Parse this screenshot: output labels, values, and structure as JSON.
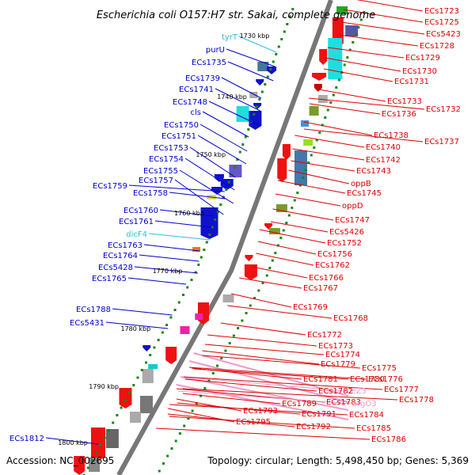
{
  "title": "Escherichia coli O157:H7 str. Sakai, complete genome",
  "footer": {
    "accession": "Accession: NC_002695",
    "summary": "Topology: circular; Length: 5,498,450 bp; Genes: 5,369"
  },
  "colors": {
    "reverse_label": "#0000cc",
    "forward_label": "#dd0000",
    "trna_label": "#33bbdd",
    "pseudo_label": "#ee99cc",
    "backbone": "#777777",
    "tick": "#118811"
  },
  "ruler_labels": [
    "1730 kbp",
    "1740 kbp",
    "1750 kbp",
    "1760 kbp",
    "1770 kbp",
    "1780 kbp",
    "1790 kbp",
    "1800 kbp"
  ],
  "left_genes": [
    {
      "label": "tyrT",
      "kind": "trna"
    },
    {
      "label": "purU",
      "kind": "gene"
    },
    {
      "label": "ECs1735",
      "kind": "gene"
    },
    {
      "label": "ECs1739",
      "kind": "gene"
    },
    {
      "label": "ECs1741",
      "kind": "gene"
    },
    {
      "label": "ECs1748",
      "kind": "gene"
    },
    {
      "label": "cls",
      "kind": "gene"
    },
    {
      "label": "ECs1750",
      "kind": "gene"
    },
    {
      "label": "ECs1751",
      "kind": "gene"
    },
    {
      "label": "ECs1753",
      "kind": "gene"
    },
    {
      "label": "ECs1754",
      "kind": "gene"
    },
    {
      "label": "ECs1755",
      "kind": "gene"
    },
    {
      "label": "ECs1757",
      "kind": "gene"
    },
    {
      "label": "ECs1759",
      "kind": "gene"
    },
    {
      "label": "ECs1758",
      "kind": "gene"
    },
    {
      "label": "ECs1760",
      "kind": "gene"
    },
    {
      "label": "ECs1761",
      "kind": "gene"
    },
    {
      "label": "dicF4",
      "kind": "trna"
    },
    {
      "label": "ECs1763",
      "kind": "gene"
    },
    {
      "label": "ECs1764",
      "kind": "gene"
    },
    {
      "label": "ECs5428",
      "kind": "gene"
    },
    {
      "label": "ECs1765",
      "kind": "gene"
    },
    {
      "label": "ECs1788",
      "kind": "gene"
    },
    {
      "label": "ECs5431",
      "kind": "gene"
    },
    {
      "label": "ECs1812",
      "kind": "gene"
    }
  ],
  "right_genes": [
    {
      "label": "ECs1723",
      "kind": "gene"
    },
    {
      "label": "ECs1725",
      "kind": "gene"
    },
    {
      "label": "ECs5423",
      "kind": "gene"
    },
    {
      "label": "ECs1728",
      "kind": "gene"
    },
    {
      "label": "ECs1729",
      "kind": "gene"
    },
    {
      "label": "ECs1730",
      "kind": "gene"
    },
    {
      "label": "ECs1731",
      "kind": "gene"
    },
    {
      "label": "ECs1733",
      "kind": "gene"
    },
    {
      "label": "ECs1732",
      "kind": "gene"
    },
    {
      "label": "ECs1736",
      "kind": "gene"
    },
    {
      "label": "ECs1738",
      "kind": "gene"
    },
    {
      "label": "ECs1737",
      "kind": "gene"
    },
    {
      "label": "ECs1740",
      "kind": "gene"
    },
    {
      "label": "ECs1742",
      "kind": "gene"
    },
    {
      "label": "ECs1743",
      "kind": "gene"
    },
    {
      "label": "oppB",
      "kind": "gene"
    },
    {
      "label": "ECs1745",
      "kind": "gene"
    },
    {
      "label": "oppD",
      "kind": "gene"
    },
    {
      "label": "ECs1747",
      "kind": "gene"
    },
    {
      "label": "ECs5426",
      "kind": "gene"
    },
    {
      "label": "ECs1752",
      "kind": "gene"
    },
    {
      "label": "ECs1756",
      "kind": "gene"
    },
    {
      "label": "ECs1762",
      "kind": "gene"
    },
    {
      "label": "ECs1766",
      "kind": "gene"
    },
    {
      "label": "ECs1767",
      "kind": "gene"
    },
    {
      "label": "ECs1769",
      "kind": "gene"
    },
    {
      "label": "ECs1768",
      "kind": "gene"
    },
    {
      "label": "ECs1772",
      "kind": "gene"
    },
    {
      "label": "ECs1773",
      "kind": "gene"
    },
    {
      "label": "ECs1774",
      "kind": "gene"
    },
    {
      "label": "ECs1779",
      "kind": "gene"
    },
    {
      "label": "ECs1775",
      "kind": "gene"
    },
    {
      "label": "ECs1776",
      "kind": "gene"
    },
    {
      "label": "ECs1781",
      "kind": "gene"
    },
    {
      "label": "ECs1780",
      "kind": "gene"
    },
    {
      "label": "ileZ3",
      "kind": "pseudo"
    },
    {
      "label": "ECs1777",
      "kind": "gene"
    },
    {
      "label": "ECs1782",
      "kind": "gene"
    },
    {
      "label": "ECs1778",
      "kind": "gene"
    },
    {
      "label": "ECs1789",
      "kind": "gene"
    },
    {
      "label": "ECs1783",
      "kind": "gene"
    },
    {
      "label": "argO3",
      "kind": "pseudo"
    },
    {
      "label": "ECs1793",
      "kind": "gene"
    },
    {
      "label": "ECs1791",
      "kind": "gene"
    },
    {
      "label": "ECs1784",
      "kind": "gene"
    },
    {
      "label": "ECs1795",
      "kind": "gene"
    },
    {
      "label": "ECs1792",
      "kind": "gene"
    },
    {
      "label": "ECs1785",
      "kind": "gene"
    },
    {
      "label": "ECs1786",
      "kind": "gene"
    }
  ]
}
